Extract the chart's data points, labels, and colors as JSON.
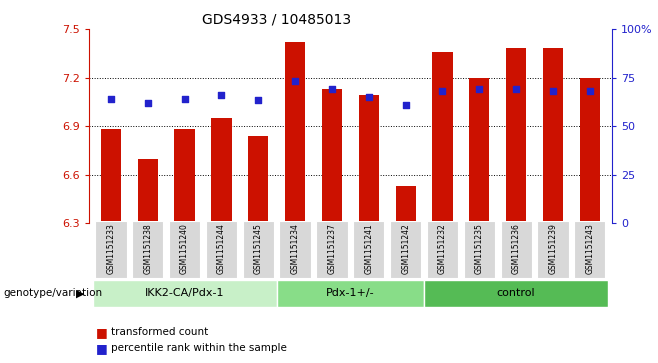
{
  "title": "GDS4933 / 10485013",
  "samples": [
    "GSM1151233",
    "GSM1151238",
    "GSM1151240",
    "GSM1151244",
    "GSM1151245",
    "GSM1151234",
    "GSM1151237",
    "GSM1151241",
    "GSM1151242",
    "GSM1151232",
    "GSM1151235",
    "GSM1151236",
    "GSM1151239",
    "GSM1151243"
  ],
  "bar_values": [
    6.88,
    6.7,
    6.88,
    6.95,
    6.84,
    7.42,
    7.13,
    7.09,
    6.53,
    7.36,
    7.2,
    7.38,
    7.38,
    7.2
  ],
  "percentile_values": [
    7.07,
    7.04,
    7.07,
    7.09,
    7.06,
    7.18,
    7.13,
    7.08,
    7.03,
    7.12,
    7.13,
    7.13,
    7.12,
    7.12
  ],
  "ymin": 6.3,
  "ymax": 7.5,
  "y_ticks": [
    6.3,
    6.6,
    6.9,
    7.2,
    7.5
  ],
  "y2_ticks": [
    0,
    25,
    50,
    75,
    100
  ],
  "bar_color": "#cc1100",
  "dot_color": "#2222cc",
  "grid_lines": [
    6.6,
    6.9,
    7.2
  ],
  "groups": [
    {
      "label": "IKK2-CA/Pdx-1",
      "start": 0,
      "end": 5
    },
    {
      "label": "Pdx-1+/-",
      "start": 5,
      "end": 9
    },
    {
      "label": "control",
      "start": 9,
      "end": 14
    }
  ],
  "group_colors": [
    "#c8f0c8",
    "#88dd88",
    "#55bb55"
  ],
  "xlabel_group": "genotype/variation",
  "legend_red": "transformed count",
  "legend_blue": "percentile rank within the sample",
  "bar_width": 0.55
}
